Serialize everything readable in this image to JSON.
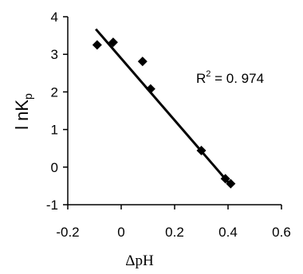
{
  "chart_data": {
    "type": "scatter",
    "xlabel": "ΔpH",
    "ylabel_main": "l nK",
    "ylabel_sub": "p",
    "xlim": [
      -0.2,
      0.6
    ],
    "ylim": [
      -1,
      4
    ],
    "xticks": [
      -0.2,
      0,
      0.2,
      0.4,
      0.6
    ],
    "xtick_labels": [
      "-0.2",
      "0",
      "0.2",
      "0.4",
      "0.6"
    ],
    "yticks": [
      -1,
      0,
      1,
      2,
      3,
      4
    ],
    "ytick_labels": [
      "-1",
      "0",
      "1",
      "2",
      "3",
      "4"
    ],
    "points": [
      {
        "x": -0.09,
        "y": 3.25
      },
      {
        "x": -0.03,
        "y": 3.32
      },
      {
        "x": 0.08,
        "y": 2.81
      },
      {
        "x": 0.11,
        "y": 2.08
      },
      {
        "x": 0.3,
        "y": 0.44
      },
      {
        "x": 0.39,
        "y": -0.31
      },
      {
        "x": 0.41,
        "y": -0.44
      }
    ],
    "fit_line": {
      "x": [
        -0.095,
        0.415
      ],
      "y": [
        3.67,
        -0.52
      ]
    },
    "annotation": {
      "prefix": "R",
      "sup": "2",
      "text": " = 0. 974"
    },
    "grid": false,
    "legend": "none",
    "marker_color": "#000000",
    "line_color": "#000000"
  }
}
